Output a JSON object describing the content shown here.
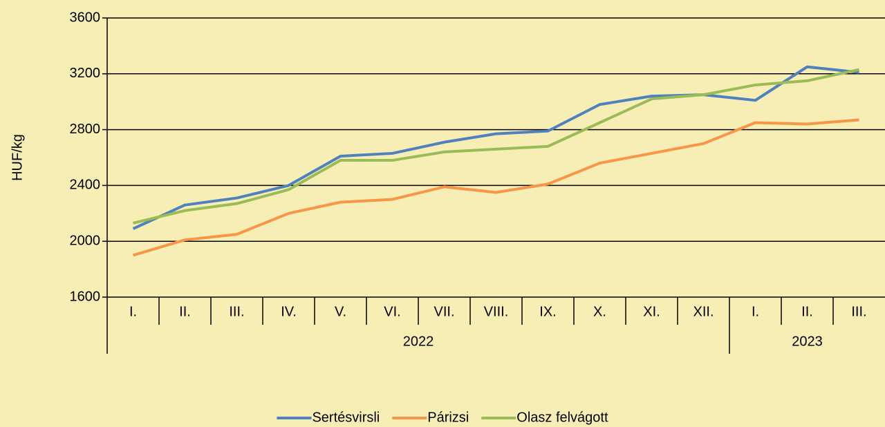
{
  "chart_data": {
    "type": "line",
    "y_label": "HUF/kg",
    "categories": [
      "I.",
      "II.",
      "III.",
      "IV.",
      "V.",
      "VI.",
      "VII.",
      "VIII.",
      "IX.",
      "X.",
      "XI.",
      "XII.",
      "I.",
      "II.",
      "III."
    ],
    "x_groups": [
      {
        "label": "2022",
        "count": 12
      },
      {
        "label": "2023",
        "count": 3
      }
    ],
    "series": [
      {
        "name": "Sertésvirsli",
        "color": "#4f81bd",
        "values": [
          2090,
          2260,
          2310,
          2400,
          2610,
          2630,
          2710,
          2770,
          2790,
          2980,
          3040,
          3050,
          3010,
          3250,
          3210
        ]
      },
      {
        "name": "Párizsi",
        "color": "#f79646",
        "values": [
          1900,
          2010,
          2050,
          2200,
          2280,
          2300,
          2390,
          2350,
          2410,
          2560,
          2630,
          2700,
          2850,
          2840,
          2870
        ]
      },
      {
        "name": "Olasz felvágott",
        "color": "#9bbb59",
        "values": [
          2130,
          2220,
          2270,
          2370,
          2580,
          2580,
          2640,
          2660,
          2680,
          2850,
          3020,
          3050,
          3120,
          3150,
          3230
        ]
      }
    ],
    "ylim": [
      1600,
      3600
    ],
    "yticks": [
      1600,
      2000,
      2400,
      2800,
      3200,
      3600
    ],
    "grid": true,
    "legend": "bottom"
  }
}
